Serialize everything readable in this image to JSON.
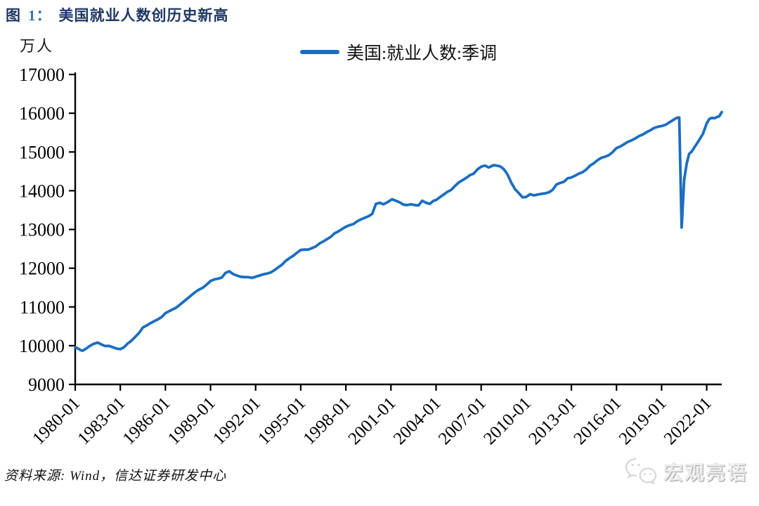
{
  "page": {
    "title_fig": "图",
    "title_num": "1：",
    "title_text": "美国就业人数创历史新高",
    "source_text": "资料来源: Wind，信达证券研发中心",
    "watermark_text": "宏观亮语"
  },
  "colors": {
    "line": "#1B6EC1",
    "title_main": "#1F3864",
    "title_accent": "#2E74B5",
    "axis": "#000000",
    "tick_text": "#000000",
    "watermark": "#EDEDED"
  },
  "chart_data": {
    "type": "line",
    "title": "图 1：美国就业人数创历史新高",
    "unit_label": "万人",
    "xlabel": "",
    "ylabel": "万人",
    "grid": false,
    "legend_position": "top-center",
    "ylim": [
      9000,
      17000
    ],
    "y_ticks": [
      17000,
      16000,
      15000,
      14000,
      13000,
      12000,
      11000,
      10000,
      9000
    ],
    "xlim": [
      1980,
      2023
    ],
    "x_tick_labels": [
      "1980-01",
      "1983-01",
      "1986-01",
      "1989-01",
      "1992-01",
      "1995-01",
      "1998-01",
      "2001-01",
      "2004-01",
      "2007-01",
      "2010-01",
      "2013-01",
      "2016-01",
      "2019-01",
      "2022-01"
    ],
    "x": [
      1980,
      1980.17,
      1980.33,
      1980.5,
      1980.75,
      1981,
      1981.25,
      1981.5,
      1981.75,
      1982,
      1982.25,
      1982.5,
      1982.75,
      1983,
      1983.25,
      1983.5,
      1983.75,
      1984,
      1984.25,
      1984.5,
      1984.75,
      1985,
      1985.25,
      1985.5,
      1985.75,
      1986,
      1986.25,
      1986.5,
      1986.75,
      1987,
      1987.25,
      1987.5,
      1987.75,
      1988,
      1988.25,
      1988.5,
      1988.75,
      1989,
      1989.25,
      1989.5,
      1989.75,
      1990,
      1990.25,
      1990.5,
      1990.75,
      1991,
      1991.25,
      1991.5,
      1991.75,
      1992,
      1992.25,
      1992.5,
      1992.75,
      1993,
      1993.25,
      1993.5,
      1993.75,
      1994,
      1994.25,
      1994.5,
      1994.75,
      1995,
      1995.25,
      1995.5,
      1995.75,
      1996,
      1996.25,
      1996.5,
      1996.75,
      1997,
      1997.25,
      1997.5,
      1997.75,
      1998,
      1998.25,
      1998.5,
      1998.75,
      1999,
      1999.25,
      1999.5,
      1999.75,
      2000,
      2000.25,
      2000.5,
      2000.75,
      2001.08,
      2001.33,
      2001.58,
      2001.83,
      2002.08,
      2002.33,
      2002.58,
      2002.83,
      2003.08,
      2003.33,
      2003.58,
      2003.83,
      2004,
      2004.25,
      2004.5,
      2004.75,
      2005,
      2005.25,
      2005.5,
      2005.75,
      2006,
      2006.25,
      2006.5,
      2006.75,
      2007,
      2007.25,
      2007.5,
      2007.83,
      2008,
      2008.25,
      2008.5,
      2008.75,
      2009,
      2009.25,
      2009.5,
      2009.75,
      2010,
      2010.25,
      2010.5,
      2010.75,
      2011,
      2011.25,
      2011.5,
      2011.75,
      2012,
      2012.25,
      2012.5,
      2012.75,
      2013,
      2013.25,
      2013.5,
      2013.75,
      2014,
      2014.25,
      2014.5,
      2014.75,
      2015,
      2015.25,
      2015.5,
      2015.75,
      2016,
      2016.25,
      2016.5,
      2016.75,
      2017,
      2017.25,
      2017.5,
      2017.75,
      2018,
      2018.25,
      2018.5,
      2018.75,
      2019,
      2019.25,
      2019.5,
      2019.75,
      2020,
      2020.17,
      2020.33,
      2020.5,
      2020.67,
      2020.83,
      2021,
      2021.25,
      2021.5,
      2021.75,
      2022,
      2022.17,
      2022.33,
      2022.5,
      2022.67,
      2022.83,
      2023
    ],
    "series": [
      {
        "name": "美国:就业人数:季调",
        "color": "#1B6EC1",
        "values": [
          9960,
          9930,
          9890,
          9870,
          9930,
          10000,
          10050,
          10080,
          10030,
          9990,
          9995,
          9960,
          9925,
          9910,
          9960,
          10060,
          10130,
          10230,
          10330,
          10470,
          10520,
          10580,
          10630,
          10680,
          10740,
          10840,
          10890,
          10940,
          10990,
          11070,
          11150,
          11230,
          11310,
          11390,
          11450,
          11500,
          11580,
          11670,
          11710,
          11730,
          11760,
          11880,
          11920,
          11850,
          11810,
          11780,
          11770,
          11770,
          11750,
          11780,
          11810,
          11840,
          11860,
          11890,
          11950,
          12020,
          12090,
          12190,
          12260,
          12320,
          12400,
          12470,
          12480,
          12480,
          12520,
          12560,
          12640,
          12690,
          12750,
          12810,
          12900,
          12950,
          13010,
          13070,
          13110,
          13140,
          13210,
          13260,
          13300,
          13340,
          13400,
          13660,
          13690,
          13650,
          13700,
          13780,
          13740,
          13700,
          13640,
          13630,
          13650,
          13630,
          13620,
          13740,
          13690,
          13660,
          13740,
          13760,
          13830,
          13900,
          13970,
          14020,
          14120,
          14210,
          14270,
          14330,
          14400,
          14440,
          14550,
          14620,
          14650,
          14600,
          14660,
          14650,
          14630,
          14560,
          14420,
          14210,
          14040,
          13940,
          13830,
          13840,
          13910,
          13880,
          13900,
          13920,
          13930,
          13960,
          14020,
          14160,
          14200,
          14230,
          14320,
          14340,
          14390,
          14440,
          14480,
          14550,
          14650,
          14710,
          14790,
          14850,
          14880,
          14920,
          15000,
          15100,
          15140,
          15200,
          15260,
          15300,
          15350,
          15410,
          15450,
          15510,
          15560,
          15620,
          15650,
          15670,
          15700,
          15760,
          15820,
          15880,
          15890,
          13050,
          14280,
          14700,
          14950,
          15010,
          15160,
          15310,
          15470,
          15740,
          15850,
          15880,
          15870,
          15900,
          15920,
          16030
        ]
      }
    ]
  }
}
